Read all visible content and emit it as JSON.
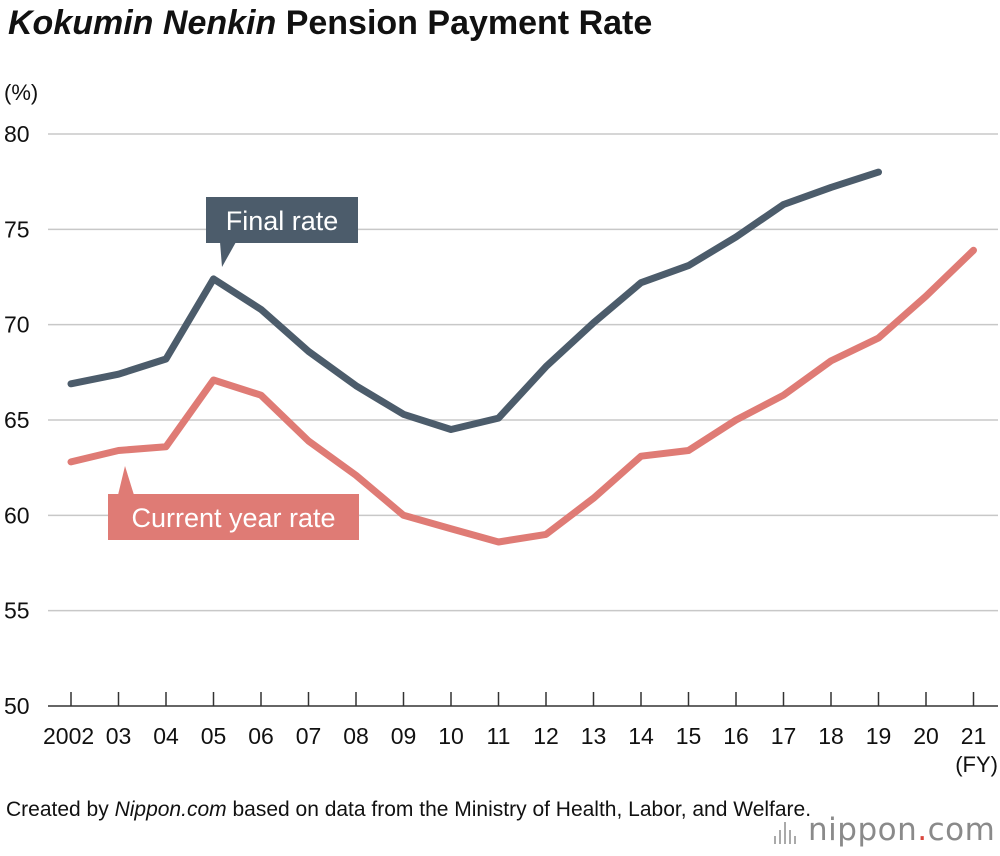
{
  "title": {
    "italic": "Kokumin Nenkin",
    "rest": "Pension Payment Rate"
  },
  "footer": {
    "prefix": "Created by ",
    "source_italic": "Nippon.com",
    "suffix": " based on data from the Ministry of Health, Labor, and Welfare."
  },
  "logo": {
    "name": "nippon",
    "dot": ".",
    "tld": "com",
    "accent": "#d9463d"
  },
  "chart_data": {
    "type": "line",
    "ylabel": "(%)",
    "xunit": "(FY)",
    "ylim": [
      50,
      80
    ],
    "yticks": [
      "50",
      "55",
      "60",
      "65",
      "70",
      "75",
      "80"
    ],
    "categories": [
      "2002",
      "03",
      "04",
      "05",
      "06",
      "07",
      "08",
      "09",
      "10",
      "11",
      "12",
      "13",
      "14",
      "15",
      "16",
      "17",
      "18",
      "19",
      "20",
      "21"
    ],
    "grid": true,
    "series": [
      {
        "name": "Final rate",
        "color": "#4c5c6b",
        "values": [
          66.9,
          67.4,
          68.2,
          72.4,
          70.8,
          68.6,
          66.8,
          65.3,
          64.5,
          65.1,
          67.8,
          70.1,
          72.2,
          73.1,
          74.6,
          76.3,
          77.2,
          78.0,
          null,
          null
        ]
      },
      {
        "name": "Current year rate",
        "color": "#df7b75",
        "values": [
          62.8,
          63.4,
          63.6,
          67.1,
          66.3,
          63.9,
          62.1,
          60.0,
          59.3,
          58.6,
          59.0,
          60.9,
          63.1,
          63.4,
          65.0,
          66.3,
          68.1,
          69.3,
          71.5,
          73.9
        ]
      }
    ]
  }
}
